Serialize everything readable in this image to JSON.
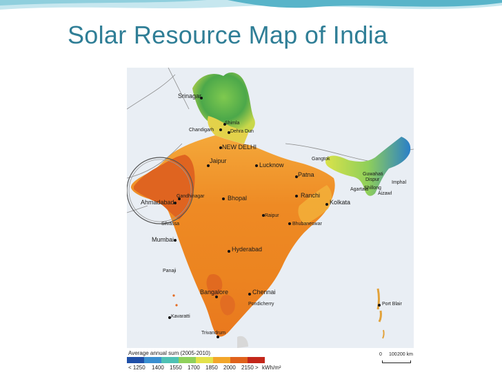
{
  "slide": {
    "title": "Solar Resource Map of India"
  },
  "colors": {
    "title": "#2f7e96",
    "header_wave_dark": "#58b4c9",
    "header_wave_light": "#c6e7ef",
    "sea": "#e9eef4",
    "highlight_circle": "#555555"
  },
  "map": {
    "cities": [
      {
        "id": "srinagar",
        "name": "Srinagar"
      },
      {
        "id": "shimla",
        "name": "Shimla"
      },
      {
        "id": "chandigarh",
        "name": "Chandigarh"
      },
      {
        "id": "dehradun",
        "name": "Dehra Dun"
      },
      {
        "id": "new-delhi",
        "name": "NEW DELHI"
      },
      {
        "id": "jaipur",
        "name": "Jaipur"
      },
      {
        "id": "lucknow",
        "name": "Lucknow"
      },
      {
        "id": "gangtok",
        "name": "Gangtok"
      },
      {
        "id": "guwahati",
        "name": "Guwahati"
      },
      {
        "id": "dispur",
        "name": "Dispur"
      },
      {
        "id": "shillong",
        "name": "Shillong"
      },
      {
        "id": "imphal",
        "name": "Imphal"
      },
      {
        "id": "agartala",
        "name": "Agartala"
      },
      {
        "id": "aizawl",
        "name": "Aizawl"
      },
      {
        "id": "patna",
        "name": "Patna"
      },
      {
        "id": "ranchi",
        "name": "Ranchi"
      },
      {
        "id": "kolkata",
        "name": "Kolkata"
      },
      {
        "id": "gandhinagar",
        "name": "Gandhinagar"
      },
      {
        "id": "ahmadabad",
        "name": "Ahmadabad"
      },
      {
        "id": "silvassa",
        "name": "Silvassa"
      },
      {
        "id": "bhopal",
        "name": "Bhopal"
      },
      {
        "id": "raipur",
        "name": "Raipur"
      },
      {
        "id": "bhubaneswar",
        "name": "Bhubaneswar"
      },
      {
        "id": "mumbai",
        "name": "Mumbai"
      },
      {
        "id": "hyderabad",
        "name": "Hyderabad"
      },
      {
        "id": "panaji",
        "name": "Panaji"
      },
      {
        "id": "bangalore",
        "name": "Bangalore"
      },
      {
        "id": "chennai",
        "name": "Chennai"
      },
      {
        "id": "pondicherry",
        "name": "Pondicherry"
      },
      {
        "id": "kavaratti",
        "name": "Kavaratti"
      },
      {
        "id": "trivandrum",
        "name": "Trivandrum"
      },
      {
        "id": "port-blair",
        "name": "Port Blair"
      }
    ],
    "legend": {
      "title": "Average annual sum (2005-2010)",
      "unit": "kWh/m²",
      "classes": [
        {
          "label": "< 1250",
          "color": "#1f4fa8"
        },
        {
          "label": "1400",
          "color": "#3a8fd0"
        },
        {
          "label": "1550",
          "color": "#4ec1b4"
        },
        {
          "label": "1700",
          "color": "#8fd05a"
        },
        {
          "label": "1850",
          "color": "#e3e24a"
        },
        {
          "label": "2000",
          "color": "#f3a62a"
        },
        {
          "label": "2150 >",
          "color": "#e0621c"
        },
        {
          "label": "",
          "color": "#c3271a"
        }
      ]
    },
    "scale": {
      "ticks": [
        "0",
        "100",
        "200 km"
      ]
    }
  }
}
